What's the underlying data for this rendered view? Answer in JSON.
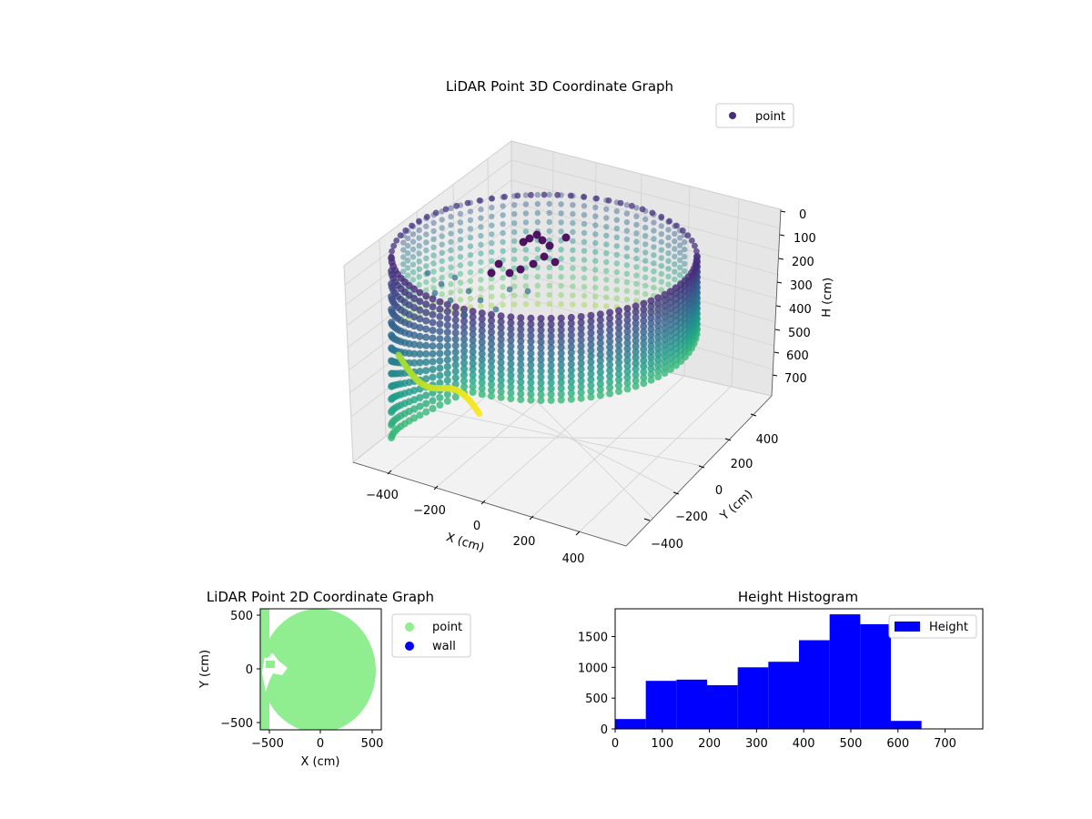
{
  "chart_data": [
    {
      "type": "scatter3d",
      "title": "LiDAR Point 3D Coordinate Graph",
      "xlabel": "X (cm)",
      "ylabel": "Y (cm)",
      "zlabel": "H (cm)",
      "x_ticks": [
        "−400",
        "−200",
        "0",
        "200",
        "400"
      ],
      "y_ticks": [
        "−400",
        "−200",
        "0",
        "200",
        "400"
      ],
      "z_ticks": [
        "0",
        "100",
        "200",
        "300",
        "400",
        "500",
        "600",
        "700"
      ],
      "xlim": [
        -530,
        530
      ],
      "ylim": [
        -530,
        530
      ],
      "zlim": [
        780,
        0
      ],
      "z_inverted": true,
      "colormap": "viridis",
      "grid": true,
      "legend": {
        "position": "top-right",
        "entries": [
          {
            "label": "point",
            "color": "#472d7b"
          }
        ]
      }
    },
    {
      "type": "scatter",
      "title": "LiDAR Point 2D Coordinate Graph",
      "xlabel": "X (cm)",
      "ylabel": "Y (cm)",
      "x_ticks": [
        "−500",
        "0",
        "500"
      ],
      "y_ticks": [
        "500",
        "0",
        "−500"
      ],
      "xlim": [
        -570,
        570
      ],
      "ylim": [
        -570,
        570
      ],
      "legend": {
        "position": "outside-right",
        "entries": [
          {
            "label": "point",
            "color": "#90ee90"
          },
          {
            "label": "wall",
            "color": "#0000ff"
          }
        ]
      }
    },
    {
      "type": "bar",
      "subtype": "histogram",
      "title": "Height Histogram",
      "bin_edges": [
        0,
        65,
        130,
        195,
        260,
        325,
        390,
        455,
        520,
        585,
        650,
        715,
        780
      ],
      "values": [
        160,
        780,
        800,
        710,
        1000,
        1090,
        1440,
        1860,
        1700,
        130,
        0,
        0
      ],
      "x_ticks": [
        "0",
        "100",
        "200",
        "300",
        "400",
        "500",
        "600",
        "700"
      ],
      "y_ticks": [
        "0",
        "500",
        "1000",
        "1500"
      ],
      "xlim": [
        0,
        780
      ],
      "ylim": [
        0,
        1950
      ],
      "color": "#0000ff",
      "legend": {
        "position": "top-right",
        "entries": [
          {
            "label": "Height",
            "color": "#0000ff"
          }
        ]
      }
    }
  ]
}
